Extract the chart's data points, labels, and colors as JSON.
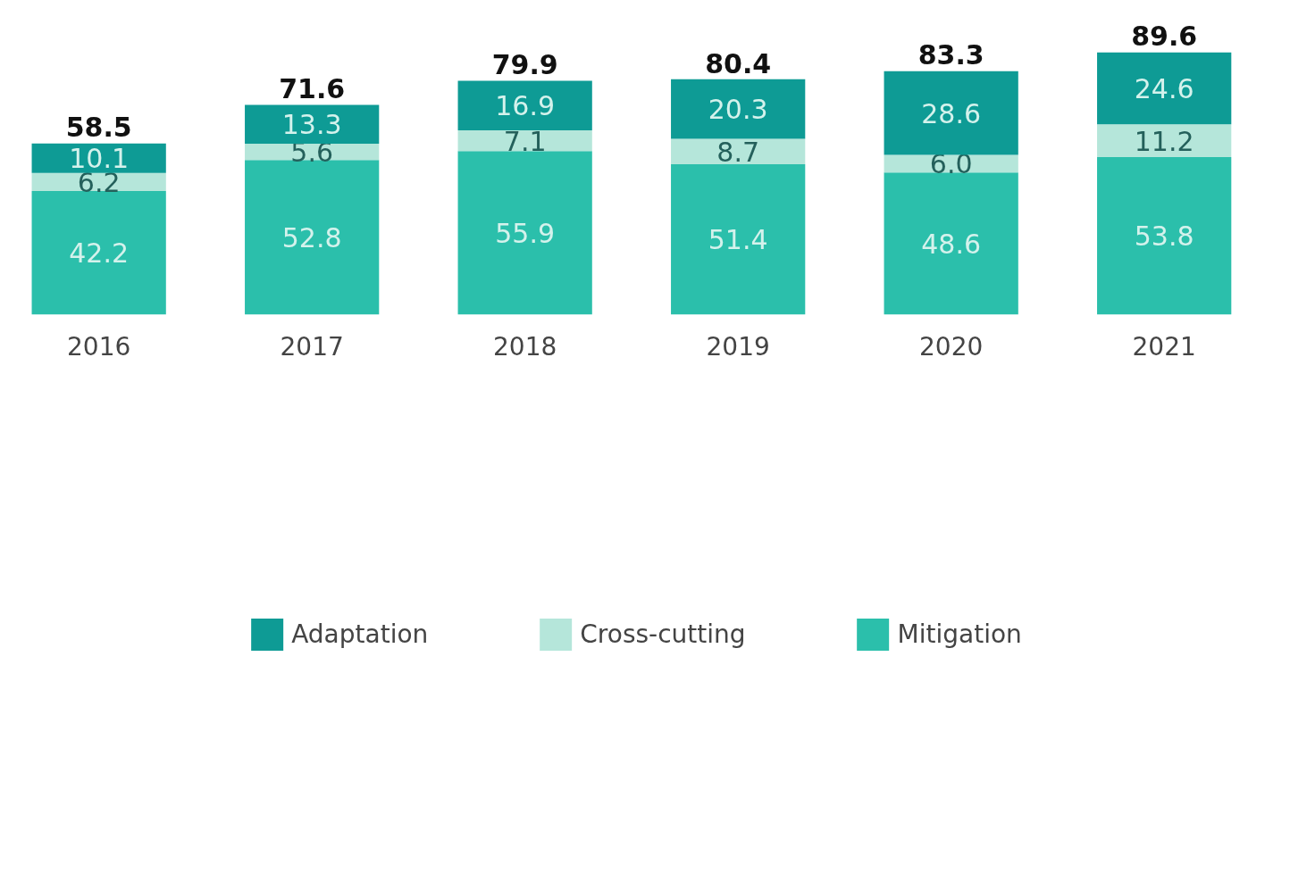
{
  "chart_data": {
    "type": "bar",
    "stacked": true,
    "categories": [
      "2016",
      "2017",
      "2018",
      "2019",
      "2020",
      "2021"
    ],
    "series": [
      {
        "name": "Mitigation",
        "color": "#2bbfab",
        "values": [
          42.2,
          52.8,
          55.9,
          51.4,
          48.6,
          53.8
        ],
        "value_labels": [
          "42.2",
          "52.8",
          "55.9",
          "51.4",
          "48.6",
          "53.8"
        ]
      },
      {
        "name": "Cross-cutting",
        "color": "#b5e6da",
        "values": [
          6.2,
          5.6,
          7.1,
          8.7,
          6.0,
          11.2
        ],
        "value_labels": [
          "6.2",
          "5.6",
          "7.1",
          "8.7",
          "6.0",
          "11.2"
        ]
      },
      {
        "name": "Adaptation",
        "color": "#0e9b95",
        "values": [
          10.1,
          13.3,
          16.9,
          20.3,
          28.6,
          24.6
        ],
        "value_labels": [
          "10.1",
          "13.3",
          "16.9",
          "20.3",
          "28.6",
          "24.6"
        ]
      }
    ],
    "totals": [
      "58.5",
      "71.6",
      "79.9",
      "80.4",
      "83.3",
      "89.6"
    ],
    "legend": "bottom",
    "grid": false
  }
}
